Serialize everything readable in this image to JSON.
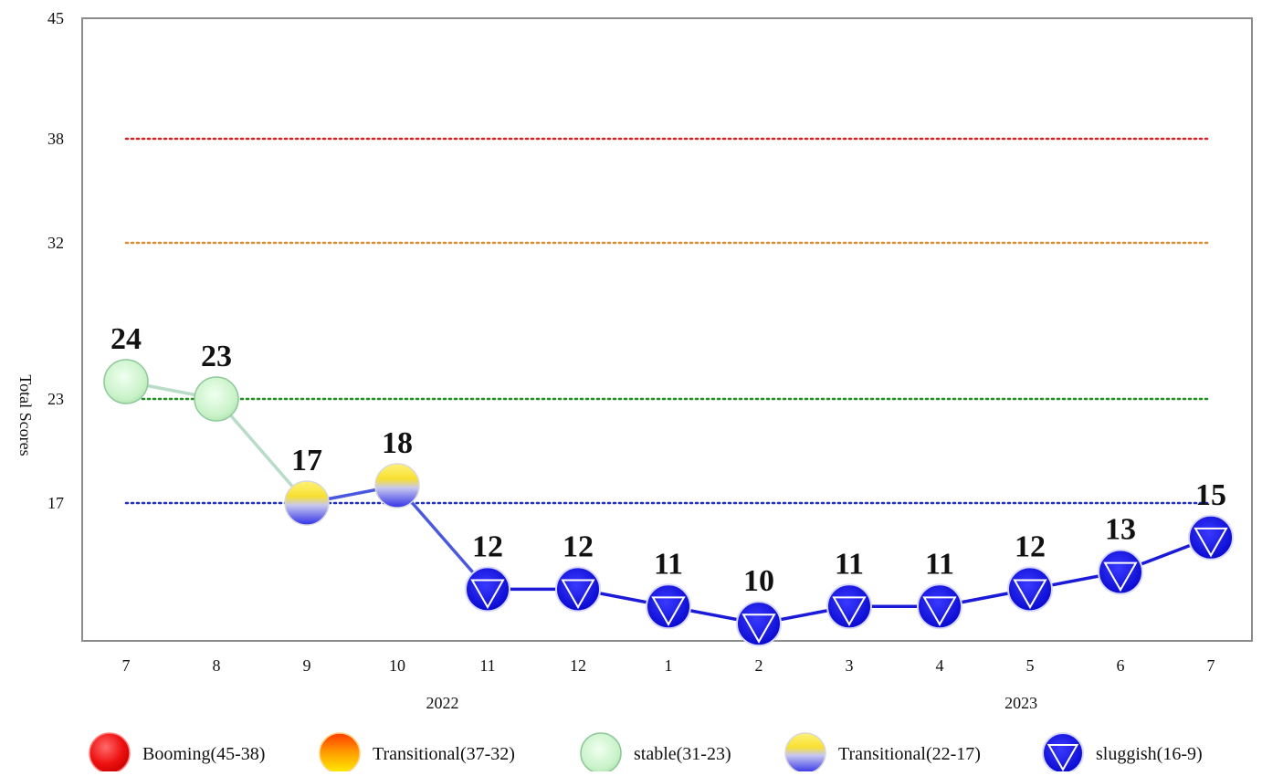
{
  "chart_data": {
    "type": "line",
    "ylabel": "Total Scores",
    "yticks": [
      45,
      38,
      32,
      23,
      17
    ],
    "ylim": [
      9,
      45
    ],
    "categories": [
      "7",
      "8",
      "9",
      "10",
      "11",
      "12",
      "1",
      "2",
      "3",
      "4",
      "5",
      "6",
      "7"
    ],
    "year_labels": [
      {
        "text": "2022",
        "after_index": 3.5
      },
      {
        "text": "2023",
        "after_index": 9.9
      }
    ],
    "series": [
      {
        "values": [
          24,
          23,
          17,
          18,
          12,
          12,
          11,
          10,
          11,
          11,
          12,
          13,
          15
        ],
        "states": [
          "stable",
          "stable",
          "transitional_low",
          "transitional_low",
          "sluggish",
          "sluggish",
          "sluggish",
          "sluggish",
          "sluggish",
          "sluggish",
          "sluggish",
          "sluggish",
          "sluggish"
        ]
      }
    ],
    "reference_lines": [
      {
        "value": 38,
        "color": "#e02020"
      },
      {
        "value": 32,
        "color": "#e08a30"
      },
      {
        "value": 23,
        "color": "#1f8f1f"
      },
      {
        "value": 17,
        "color": "#1f2fd0"
      }
    ],
    "legend": [
      {
        "label": "Booming(45-38)",
        "marker": "booming"
      },
      {
        "label": "Transitional(37-32)",
        "marker": "transitional_high"
      },
      {
        "label": "stable(31-23)",
        "marker": "stable"
      },
      {
        "label": "Transitional(22-17)",
        "marker": "transitional_low"
      },
      {
        "label": "sluggish(16-9)",
        "marker": "sluggish"
      }
    ],
    "legend_position": "bottom",
    "grid": false
  }
}
